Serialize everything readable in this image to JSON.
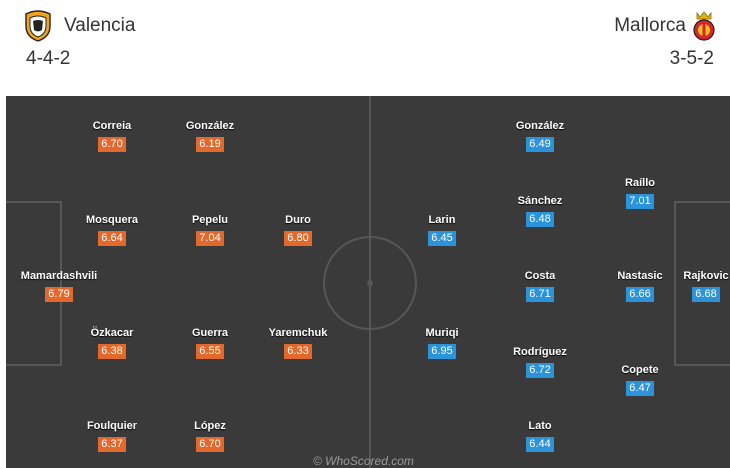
{
  "home": {
    "name": "Valencia",
    "formation": "4-4-2",
    "color": "#e2692b",
    "players": [
      {
        "name": "Correia",
        "rating": "6.70"
      },
      {
        "name": "González",
        "rating": "6.19"
      },
      {
        "name": "Mosquera",
        "rating": "6.64"
      },
      {
        "name": "Pepelu",
        "rating": "7.04"
      },
      {
        "name": "Duro",
        "rating": "6.80"
      },
      {
        "name": "Mamardashvili",
        "rating": "6.79"
      },
      {
        "name": "Özkacar",
        "rating": "6.38"
      },
      {
        "name": "Guerra",
        "rating": "6.55"
      },
      {
        "name": "Yaremchuk",
        "rating": "6.33"
      },
      {
        "name": "Foulquier",
        "rating": "6.37"
      },
      {
        "name": "López",
        "rating": "6.70"
      }
    ]
  },
  "away": {
    "name": "Mallorca",
    "formation": "3-5-2",
    "color": "#2b93d9",
    "players": [
      {
        "name": "González",
        "rating": "6.49"
      },
      {
        "name": "Raíllo",
        "rating": "7.01"
      },
      {
        "name": "Sánchez",
        "rating": "6.48"
      },
      {
        "name": "Larin",
        "rating": "6.45"
      },
      {
        "name": "Costa",
        "rating": "6.71"
      },
      {
        "name": "Nastasic",
        "rating": "6.66"
      },
      {
        "name": "Rajkovic",
        "rating": "6.68"
      },
      {
        "name": "Muriqi",
        "rating": "6.95"
      },
      {
        "name": "Rodríguez",
        "rating": "6.72"
      },
      {
        "name": "Copete",
        "rating": "6.47"
      },
      {
        "name": "Lato",
        "rating": "6.44"
      }
    ]
  },
  "watermark": "© WhoScored.com"
}
